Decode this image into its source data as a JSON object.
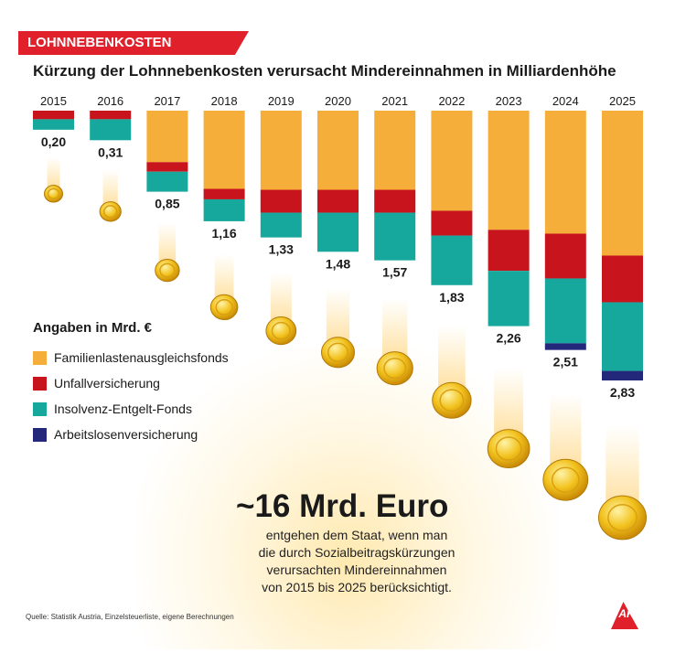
{
  "badge": "LOHNNEBENKOSTEN",
  "title": "Kürzung der Lohnnebenkosten verursacht Mindereinnahmen in Milliardenhöhe",
  "legend": {
    "title": "Angaben in Mrd. €",
    "items": [
      {
        "label": "Familienlastenausgleichsfonds",
        "color": "#f6ae3b"
      },
      {
        "label": "Unfallversicherung",
        "color": "#c8141c"
      },
      {
        "label": "Insolvenz-Entgelt-Fonds",
        "color": "#16a89c"
      },
      {
        "label": "Arbeitslosenversicherung",
        "color": "#23287a"
      }
    ]
  },
  "chart_data": {
    "type": "bar",
    "orientation": "downward-stacked",
    "title": "Kürzung der Lohnnebenkosten verursacht Mindereinnahmen in Milliardenhöhe",
    "unit": "Mrd. €",
    "categories": [
      "2015",
      "2016",
      "2017",
      "2018",
      "2019",
      "2020",
      "2021",
      "2022",
      "2023",
      "2024",
      "2025"
    ],
    "totals": [
      "0,20",
      "0,31",
      "0,85",
      "1,16",
      "1,33",
      "1,48",
      "1,57",
      "1,83",
      "2,26",
      "2,51",
      "2,83"
    ],
    "series": [
      {
        "name": "Familienlastenausgleichsfonds",
        "values": [
          0.0,
          0.0,
          0.54,
          0.82,
          0.83,
          0.83,
          0.83,
          1.05,
          1.25,
          1.29,
          1.52
        ]
      },
      {
        "name": "Unfallversicherung",
        "values": [
          0.09,
          0.09,
          0.1,
          0.11,
          0.24,
          0.24,
          0.24,
          0.26,
          0.43,
          0.47,
          0.49
        ]
      },
      {
        "name": "Insolvenz-Entgelt-Fonds",
        "values": [
          0.11,
          0.22,
          0.21,
          0.23,
          0.26,
          0.41,
          0.5,
          0.52,
          0.58,
          0.68,
          0.72
        ]
      },
      {
        "name": "Arbeitslosenversicherung",
        "values": [
          0.0,
          0.0,
          0.0,
          0.0,
          0.0,
          0.0,
          0.0,
          0.0,
          0.0,
          0.07,
          0.1
        ]
      }
    ],
    "ylim": [
      0,
      2.83
    ]
  },
  "headline": "~16 Mrd. Euro",
  "subtext": [
    "entgehen dem Staat, wenn man",
    "die durch Sozialbeitragskürzungen",
    "verursachten Mindereinnahmen",
    "von 2015 bis 2025 berücksichtigt."
  ],
  "source": "Quelle: Statistik Austria, Einzelsteuerliste, eigene Berechnungen",
  "logo": "AK"
}
